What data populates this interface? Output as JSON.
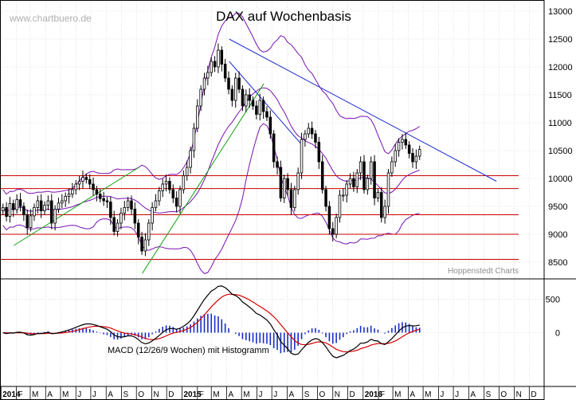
{
  "chart_data": [
    {
      "type": "candlestick",
      "title": "DAX auf Wochenbasis",
      "watermark": "www.chartbuero.de",
      "source_note": "Hoppenstedt Charts",
      "x_range": [
        "2013-12-30",
        "2016-12-31"
      ],
      "months": [
        {
          "date": "2014-01-01",
          "label": "2014",
          "is_year": true
        },
        {
          "date": "2014-02-01",
          "label": "F"
        },
        {
          "date": "2014-03-01",
          "label": "M"
        },
        {
          "date": "2014-04-01",
          "label": "A"
        },
        {
          "date": "2014-05-01",
          "label": "M"
        },
        {
          "date": "2014-06-01",
          "label": "J"
        },
        {
          "date": "2014-07-01",
          "label": "J"
        },
        {
          "date": "2014-08-01",
          "label": "A"
        },
        {
          "date": "2014-09-01",
          "label": "S"
        },
        {
          "date": "2014-10-01",
          "label": "O"
        },
        {
          "date": "2014-11-01",
          "label": "N"
        },
        {
          "date": "2014-12-01",
          "label": "D"
        },
        {
          "date": "2015-01-01",
          "label": "2015",
          "is_year": true
        },
        {
          "date": "2015-02-01",
          "label": "F"
        },
        {
          "date": "2015-03-01",
          "label": "M"
        },
        {
          "date": "2015-04-01",
          "label": "A"
        },
        {
          "date": "2015-05-01",
          "label": "M"
        },
        {
          "date": "2015-06-01",
          "label": "J"
        },
        {
          "date": "2015-07-01",
          "label": "J"
        },
        {
          "date": "2015-08-01",
          "label": "A"
        },
        {
          "date": "2015-09-01",
          "label": "S"
        },
        {
          "date": "2015-10-01",
          "label": "O"
        },
        {
          "date": "2015-11-01",
          "label": "N"
        },
        {
          "date": "2015-12-01",
          "label": "D"
        },
        {
          "date": "2016-01-01",
          "label": "2016",
          "is_year": true
        },
        {
          "date": "2016-02-01",
          "label": "F"
        },
        {
          "date": "2016-03-01",
          "label": "M"
        },
        {
          "date": "2016-04-01",
          "label": "A"
        },
        {
          "date": "2016-05-01",
          "label": "M"
        },
        {
          "date": "2016-06-01",
          "label": "J"
        },
        {
          "date": "2016-07-01",
          "label": "J"
        },
        {
          "date": "2016-08-01",
          "label": "A"
        },
        {
          "date": "2016-09-01",
          "label": "S"
        },
        {
          "date": "2016-10-01",
          "label": "O"
        },
        {
          "date": "2016-11-01",
          "label": "N"
        },
        {
          "date": "2016-12-01",
          "label": "D"
        }
      ],
      "y_range": [
        8200,
        13200
      ],
      "y_ticks": [
        8500,
        9000,
        9500,
        10000,
        10500,
        11000,
        11500,
        12000,
        12500,
        13000
      ],
      "close": [
        9480,
        9320,
        9550,
        9440,
        9620,
        9500,
        9350,
        9120,
        9330,
        9480,
        9600,
        9420,
        9520,
        9600,
        9200,
        9450,
        9560,
        9600,
        9680,
        9720,
        9800,
        9900,
        9950,
        10020,
        9980,
        9900,
        9800,
        9720,
        9640,
        9600,
        9580,
        9300,
        9050,
        9200,
        9380,
        9480,
        9600,
        9450,
        9200,
        8950,
        8700,
        8900,
        9200,
        9480,
        9600,
        9780,
        9900,
        9950,
        9800,
        9650,
        9500,
        9800,
        10050,
        10200,
        10500,
        10900,
        11300,
        11600,
        11800,
        11900,
        12100,
        12000,
        12300,
        12050,
        11800,
        11600,
        11400,
        11800,
        11600,
        11300,
        11500,
        11400,
        11300,
        11150,
        11400,
        11200,
        11100,
        10800,
        10300,
        10200,
        9650,
        10000,
        9800,
        9480,
        9800,
        10100,
        10700,
        10800,
        10900,
        10800,
        10650,
        10300,
        9800,
        9500,
        9100,
        9000,
        9300,
        9700,
        9700,
        9900,
        10000,
        9850,
        10100,
        10300,
        9800,
        10000,
        10300,
        9650,
        9750,
        9300,
        9500,
        10100,
        10300,
        10500,
        10650,
        10700,
        10600,
        10450,
        10300,
        10400,
        10520
      ],
      "hlines": [
        10050,
        9820,
        9350,
        9000,
        8550
      ],
      "trendlines": [
        {
          "color": "#1f2fcf",
          "from": {
            "date": "2015-04-06",
            "y": 12500
          },
          "to": {
            "date": "2016-09-26",
            "y": 9950
          }
        },
        {
          "color": "#1f2fcf",
          "from": {
            "date": "2015-04-06",
            "y": 12100
          },
          "to": {
            "date": "2015-08-31",
            "y": 10600
          }
        },
        {
          "color": "#10a010",
          "from": {
            "date": "2014-01-27",
            "y": 8800
          },
          "to": {
            "date": "2014-10-06",
            "y": 10200
          }
        },
        {
          "color": "#10a010",
          "from": {
            "date": "2014-10-13",
            "y": 8300
          },
          "to": {
            "date": "2015-06-15",
            "y": 11700
          }
        }
      ]
    },
    {
      "type": "macd",
      "label": "MACD (12/26/9 Wochen) mit Histogramm",
      "y_range": [
        -800,
        800
      ],
      "y_ticks": [
        0,
        500
      ]
    }
  ],
  "colors": {
    "bollinger": "#7a12b3",
    "candle": "#000000",
    "hline": "#c80000",
    "macd": "#000000",
    "signal": "#d40000",
    "histogram": "#1a2dc8"
  }
}
